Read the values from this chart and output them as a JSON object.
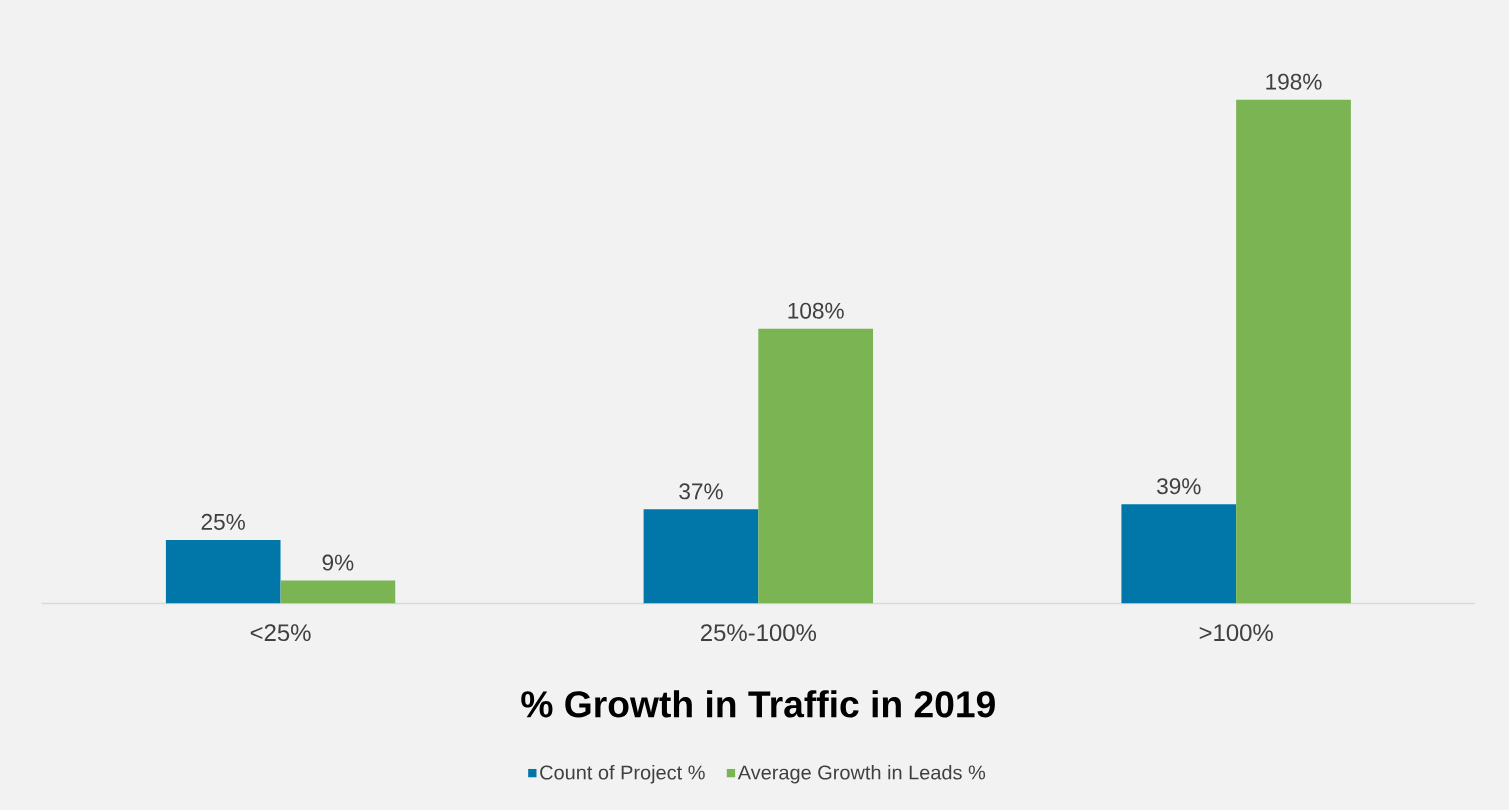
{
  "chart_data": {
    "type": "bar",
    "xlabel": "% Growth in Traffic in 2019",
    "categories": [
      "<25%",
      "25%-100%",
      ">100%"
    ],
    "series": [
      {
        "name": "Count of Project %",
        "color": "#0077a8",
        "values": [
          25,
          37,
          39
        ],
        "value_labels": [
          "25%",
          "37%",
          "39%"
        ]
      },
      {
        "name": "Average Growth in Leads %",
        "color": "#7ab453",
        "values": [
          9,
          108,
          198
        ],
        "value_labels": [
          "9%",
          "108%",
          "198%"
        ]
      }
    ],
    "legend": "bottom"
  }
}
